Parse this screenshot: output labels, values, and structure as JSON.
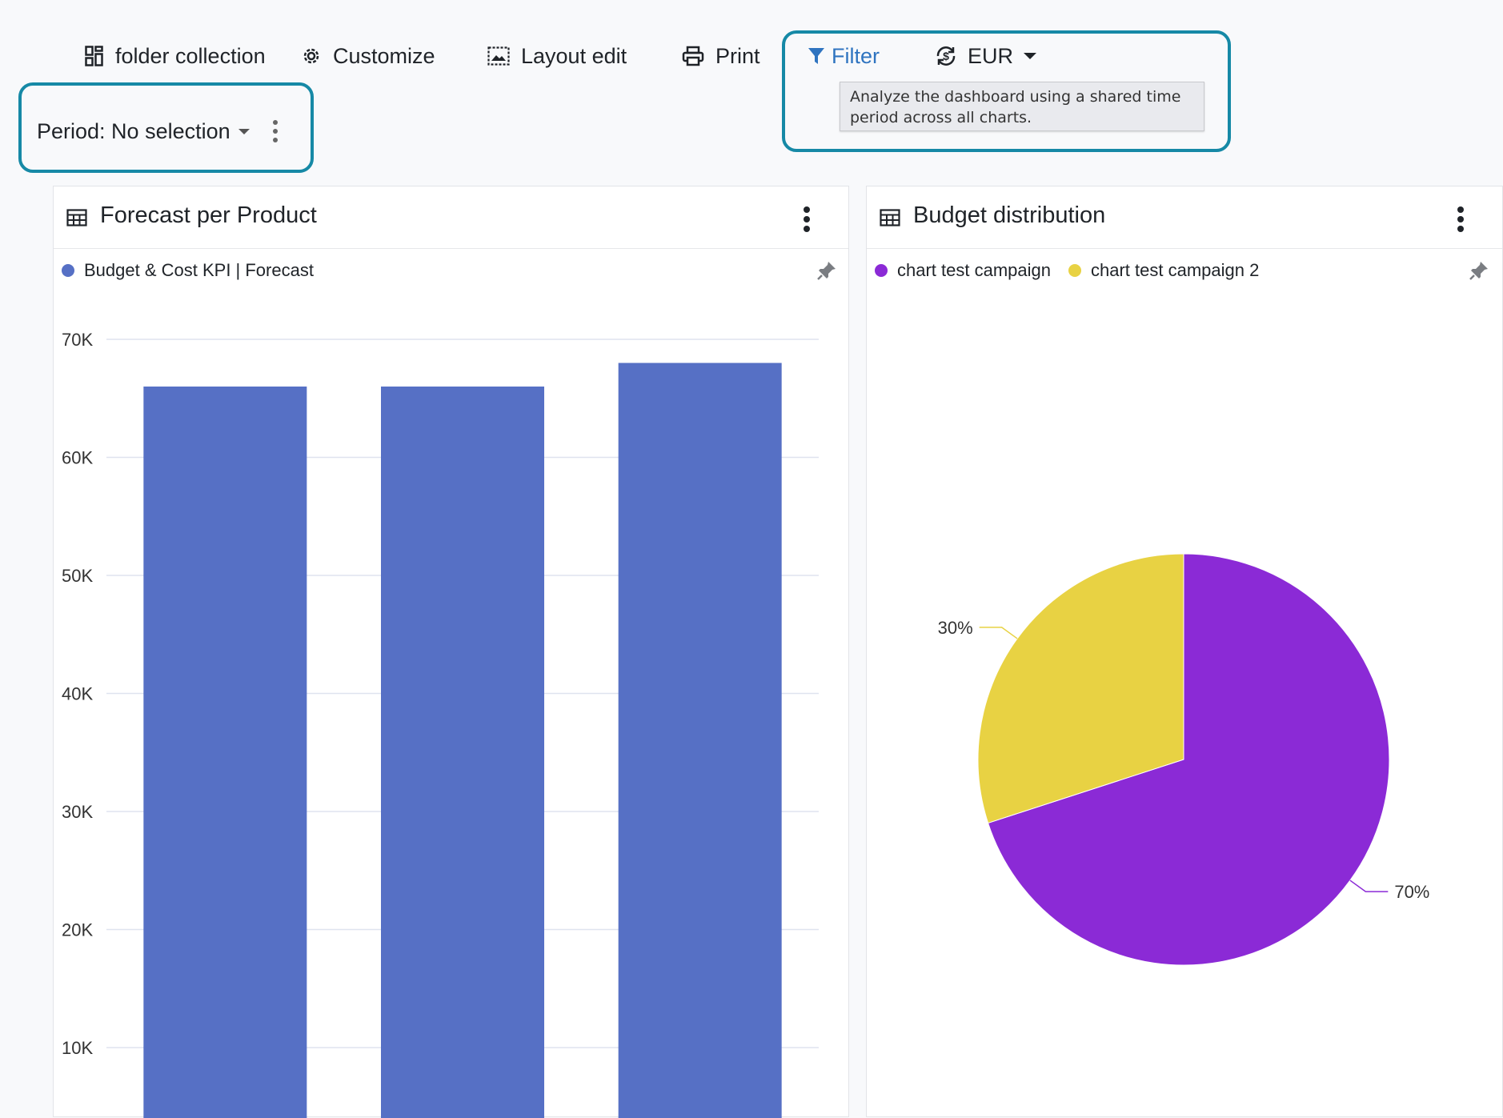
{
  "toolbar": {
    "folder_collection_label": "folder collection",
    "customize_label": "Customize",
    "layout_edit_label": "Layout edit",
    "print_label": "Print",
    "filter_label": "Filter",
    "currency_label": "EUR"
  },
  "period": {
    "label": "Period: No selection"
  },
  "tooltip": {
    "text": "Analyze the dashboard using a shared time period across all charts."
  },
  "colors": {
    "accent": "#1689a6",
    "filter_blue": "#2f74c0",
    "bar": "#5670c5",
    "purple": "#8b2ad6",
    "yellow": "#e8d243"
  },
  "panels": {
    "forecast": {
      "title": "Forecast per Product",
      "legend": "Budget & Cost KPI | Forecast"
    },
    "budget": {
      "title": "Budget distribution",
      "legend": [
        "chart test campaign",
        "chart test campaign 2"
      ]
    }
  },
  "chart_data": [
    {
      "type": "bar",
      "title": "Forecast per Product",
      "series": [
        {
          "name": "Budget & Cost KPI | Forecast",
          "values": [
            66000,
            66000,
            68000
          ]
        }
      ],
      "y_ticks": [
        "10K",
        "20K",
        "30K",
        "40K",
        "50K",
        "60K",
        "70K"
      ],
      "ylim": [
        0,
        70000
      ],
      "grid": true,
      "legend": "top-left"
    },
    {
      "type": "pie",
      "title": "Budget distribution",
      "series": [
        {
          "name": "chart test campaign",
          "value": 70,
          "label": "70%"
        },
        {
          "name": "chart test campaign 2",
          "value": 30,
          "label": "30%"
        }
      ],
      "legend": "top-left"
    }
  ]
}
